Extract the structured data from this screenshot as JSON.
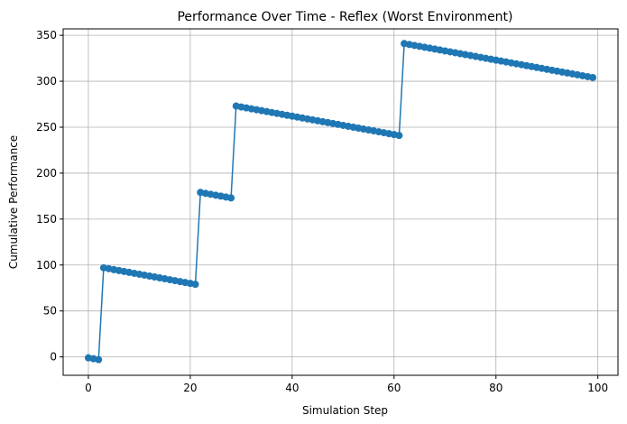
{
  "chart_data": {
    "type": "line",
    "title": "Performance Over Time - Reflex (Worst Environment)",
    "xlabel": "Simulation Step",
    "ylabel": "Cumulative Performance",
    "xlim": [
      -4.95,
      103.95
    ],
    "ylim": [
      -20,
      357
    ],
    "xticks": [
      0,
      20,
      40,
      60,
      80,
      100
    ],
    "yticks": [
      0,
      50,
      100,
      150,
      200,
      250,
      300,
      350
    ],
    "grid": true,
    "series": [
      {
        "color": "#1f77b4",
        "marker": "circle",
        "x": [
          0,
          1,
          2,
          3,
          4,
          5,
          6,
          7,
          8,
          9,
          10,
          11,
          12,
          13,
          14,
          15,
          16,
          17,
          18,
          19,
          20,
          21,
          22,
          23,
          24,
          25,
          26,
          27,
          28,
          29,
          30,
          31,
          32,
          33,
          34,
          35,
          36,
          37,
          38,
          39,
          40,
          41,
          42,
          43,
          44,
          45,
          46,
          47,
          48,
          49,
          50,
          51,
          52,
          53,
          54,
          55,
          56,
          57,
          58,
          59,
          60,
          61,
          62,
          63,
          64,
          65,
          66,
          67,
          68,
          69,
          70,
          71,
          72,
          73,
          74,
          75,
          76,
          77,
          78,
          79,
          80,
          81,
          82,
          83,
          84,
          85,
          86,
          87,
          88,
          89,
          90,
          91,
          92,
          93,
          94,
          95,
          96,
          97,
          98,
          99
        ],
        "y": [
          -1,
          -2,
          -3,
          97,
          96,
          95,
          94,
          93,
          92,
          91,
          90,
          89,
          88,
          87,
          86,
          85,
          84,
          83,
          82,
          81,
          80,
          79,
          179,
          178,
          177,
          176,
          175,
          174,
          173,
          273,
          272,
          271,
          270,
          269,
          268,
          267,
          266,
          265,
          264,
          263,
          262,
          261,
          260,
          259,
          258,
          257,
          256,
          255,
          254,
          253,
          252,
          251,
          250,
          249,
          248,
          247,
          246,
          245,
          244,
          243,
          242,
          241,
          341,
          340,
          339,
          338,
          337,
          336,
          335,
          334,
          333,
          332,
          331,
          330,
          329,
          328,
          327,
          326,
          325,
          324,
          323,
          322,
          321,
          320,
          319,
          318,
          317,
          316,
          315,
          314,
          313,
          312,
          311,
          310,
          309,
          308,
          307,
          306,
          305,
          304
        ]
      }
    ]
  }
}
